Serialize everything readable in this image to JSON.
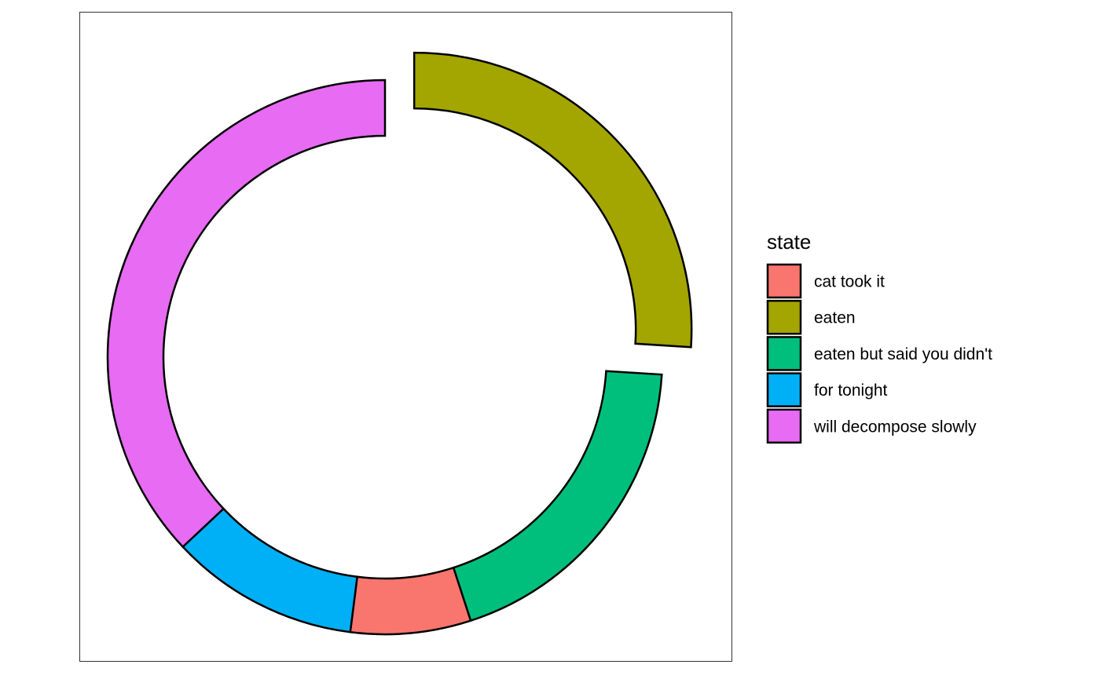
{
  "chart_data": {
    "type": "pie",
    "subtype": "exploded-donut",
    "legend": {
      "title": "state",
      "placement": "right"
    },
    "slices": [
      {
        "label": "eaten",
        "value": 26,
        "color": "#A3A500"
      },
      {
        "label": "eaten but said you didn't",
        "value": 19,
        "color": "#00BF7D"
      },
      {
        "label": "cat took it",
        "value": 7,
        "color": "#F8766D"
      },
      {
        "label": "for tonight",
        "value": 11,
        "color": "#00B0F6"
      },
      {
        "label": "will decompose slowly",
        "value": 37,
        "color": "#E76BF3"
      }
    ],
    "legend_order": [
      "cat took it",
      "eaten",
      "eaten but said you didn't",
      "for tonight",
      "will decompose slowly"
    ],
    "panel_border": true,
    "grid": false
  }
}
